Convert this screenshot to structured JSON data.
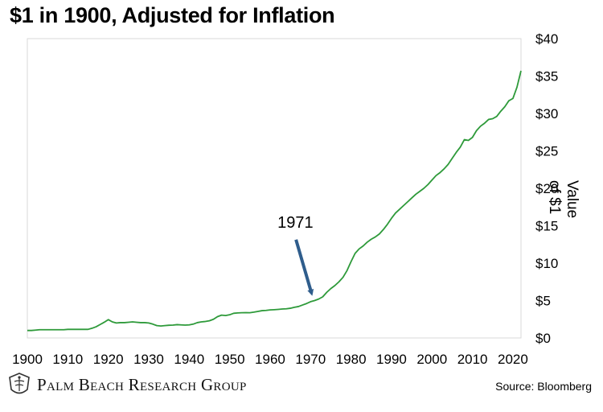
{
  "chart_data": {
    "type": "line",
    "title": "$1 in 1900, Adjusted for Inflation",
    "ylabel": "Value of $1",
    "xlim": [
      1900,
      2022
    ],
    "ylim": [
      0,
      40
    ],
    "x_ticks": [
      1900,
      1910,
      1920,
      1930,
      1940,
      1950,
      1960,
      1970,
      1980,
      1990,
      2000,
      2010,
      2020
    ],
    "x_tick_labels": [
      "1900",
      "1910",
      "1920",
      "1930",
      "1940",
      "1950",
      "1960",
      "1970",
      "1980",
      "1990",
      "2000",
      "2010",
      "2020"
    ],
    "y_ticks": [
      0,
      5,
      10,
      15,
      20,
      25,
      30,
      35,
      40
    ],
    "y_tick_labels": [
      "$0",
      "$5",
      "$10",
      "$15",
      "$20",
      "$25",
      "$30",
      "$35",
      "$40"
    ],
    "y_axis_side": "right",
    "grid": false,
    "legend": "none",
    "line_color": "#2e9a3a",
    "annotation": {
      "text": "1971",
      "arrow_x": 1971,
      "arrow_y": 5.5,
      "text_x": 1965,
      "text_y": 14,
      "arrow_color": "#2f5d8c"
    },
    "series": [
      {
        "x": [
          1900,
          1901,
          1902,
          1903,
          1904,
          1905,
          1906,
          1907,
          1908,
          1909,
          1910,
          1911,
          1912,
          1913,
          1914,
          1915,
          1916,
          1917,
          1918,
          1919,
          1920,
          1921,
          1922,
          1923,
          1924,
          1925,
          1926,
          1927,
          1928,
          1929,
          1930,
          1931,
          1932,
          1933,
          1934,
          1935,
          1936,
          1937,
          1938,
          1939,
          1940,
          1941,
          1942,
          1943,
          1944,
          1945,
          1946,
          1947,
          1948,
          1949,
          1950,
          1951,
          1952,
          1953,
          1954,
          1955,
          1956,
          1957,
          1958,
          1959,
          1960,
          1961,
          1962,
          1963,
          1964,
          1965,
          1966,
          1967,
          1968,
          1969,
          1970,
          1971,
          1972,
          1973,
          1974,
          1975,
          1976,
          1977,
          1978,
          1979,
          1980,
          1981,
          1982,
          1983,
          1984,
          1985,
          1986,
          1987,
          1988,
          1989,
          1990,
          1991,
          1992,
          1993,
          1994,
          1995,
          1996,
          1997,
          1998,
          1999,
          2000,
          2001,
          2002,
          2003,
          2004,
          2005,
          2006,
          2007,
          2008,
          2009,
          2010,
          2011,
          2012,
          2013,
          2014,
          2015,
          2016,
          2017,
          2018,
          2019,
          2020,
          2021,
          2022
        ],
        "y": [
          1.0,
          1.0,
          1.05,
          1.1,
          1.1,
          1.1,
          1.1,
          1.1,
          1.1,
          1.1,
          1.15,
          1.15,
          1.15,
          1.15,
          1.15,
          1.15,
          1.3,
          1.5,
          1.8,
          2.1,
          2.45,
          2.15,
          2.0,
          2.05,
          2.05,
          2.1,
          2.15,
          2.1,
          2.05,
          2.05,
          2.0,
          1.85,
          1.65,
          1.6,
          1.65,
          1.7,
          1.72,
          1.78,
          1.75,
          1.72,
          1.75,
          1.85,
          2.05,
          2.15,
          2.2,
          2.3,
          2.5,
          2.85,
          3.05,
          3.0,
          3.1,
          3.3,
          3.35,
          3.37,
          3.38,
          3.37,
          3.45,
          3.55,
          3.65,
          3.68,
          3.75,
          3.78,
          3.82,
          3.87,
          3.9,
          3.97,
          4.1,
          4.2,
          4.4,
          4.6,
          4.85,
          5.0,
          5.2,
          5.5,
          6.1,
          6.6,
          7.0,
          7.5,
          8.1,
          9.0,
          10.2,
          11.3,
          11.9,
          12.3,
          12.8,
          13.2,
          13.5,
          13.9,
          14.5,
          15.2,
          16.0,
          16.7,
          17.2,
          17.7,
          18.2,
          18.7,
          19.2,
          19.6,
          20.0,
          20.5,
          21.1,
          21.7,
          22.1,
          22.6,
          23.2,
          24.0,
          24.8,
          25.5,
          26.5,
          26.4,
          26.8,
          27.7,
          28.3,
          28.7,
          29.2,
          29.3,
          29.6,
          30.3,
          30.9,
          31.7,
          32.0,
          33.5,
          35.7
        ]
      }
    ]
  },
  "footer": {
    "brand": "Palm Beach Research Group",
    "source": "Source: Bloomberg"
  }
}
